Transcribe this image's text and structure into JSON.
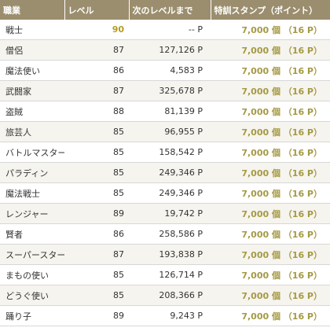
{
  "header": {
    "job": "職業",
    "level": "レベル",
    "next": "次のレベルまで",
    "stamp": "特訓スタンプ（ポイント）"
  },
  "rows": [
    {
      "job": "戦士",
      "level": "90",
      "next": "-- P",
      "stamp": "7,000 個 （16 P）",
      "max": true
    },
    {
      "job": "僧侶",
      "level": "87",
      "next": "127,126 P",
      "stamp": "7,000 個 （16 P）"
    },
    {
      "job": "魔法使い",
      "level": "86",
      "next": "4,583 P",
      "stamp": "7,000 個 （16 P）"
    },
    {
      "job": "武闘家",
      "level": "87",
      "next": "325,678 P",
      "stamp": "7,000 個 （16 P）"
    },
    {
      "job": "盗賊",
      "level": "88",
      "next": "81,139 P",
      "stamp": "7,000 個 （16 P）"
    },
    {
      "job": "旅芸人",
      "level": "85",
      "next": "96,955 P",
      "stamp": "7,000 個 （16 P）"
    },
    {
      "job": "バトルマスター",
      "level": "85",
      "next": "158,542 P",
      "stamp": "7,000 個 （16 P）"
    },
    {
      "job": "パラディン",
      "level": "85",
      "next": "249,346 P",
      "stamp": "7,000 個 （16 P）"
    },
    {
      "job": "魔法戦士",
      "level": "85",
      "next": "249,346 P",
      "stamp": "7,000 個 （16 P）"
    },
    {
      "job": "レンジャー",
      "level": "89",
      "next": "19,742 P",
      "stamp": "7,000 個 （16 P）"
    },
    {
      "job": "賢者",
      "level": "86",
      "next": "258,586 P",
      "stamp": "7,000 個 （16 P）"
    },
    {
      "job": "スーパースター",
      "level": "87",
      "next": "193,838 P",
      "stamp": "7,000 個 （16 P）"
    },
    {
      "job": "まもの使い",
      "level": "85",
      "next": "126,714 P",
      "stamp": "7,000 個 （16 P）"
    },
    {
      "job": "どうぐ使い",
      "level": "85",
      "next": "208,366 P",
      "stamp": "7,000 個 （16 P）"
    },
    {
      "job": "踊り子",
      "level": "89",
      "next": "9,243 P",
      "stamp": "7,000 個 （16 P）"
    }
  ]
}
